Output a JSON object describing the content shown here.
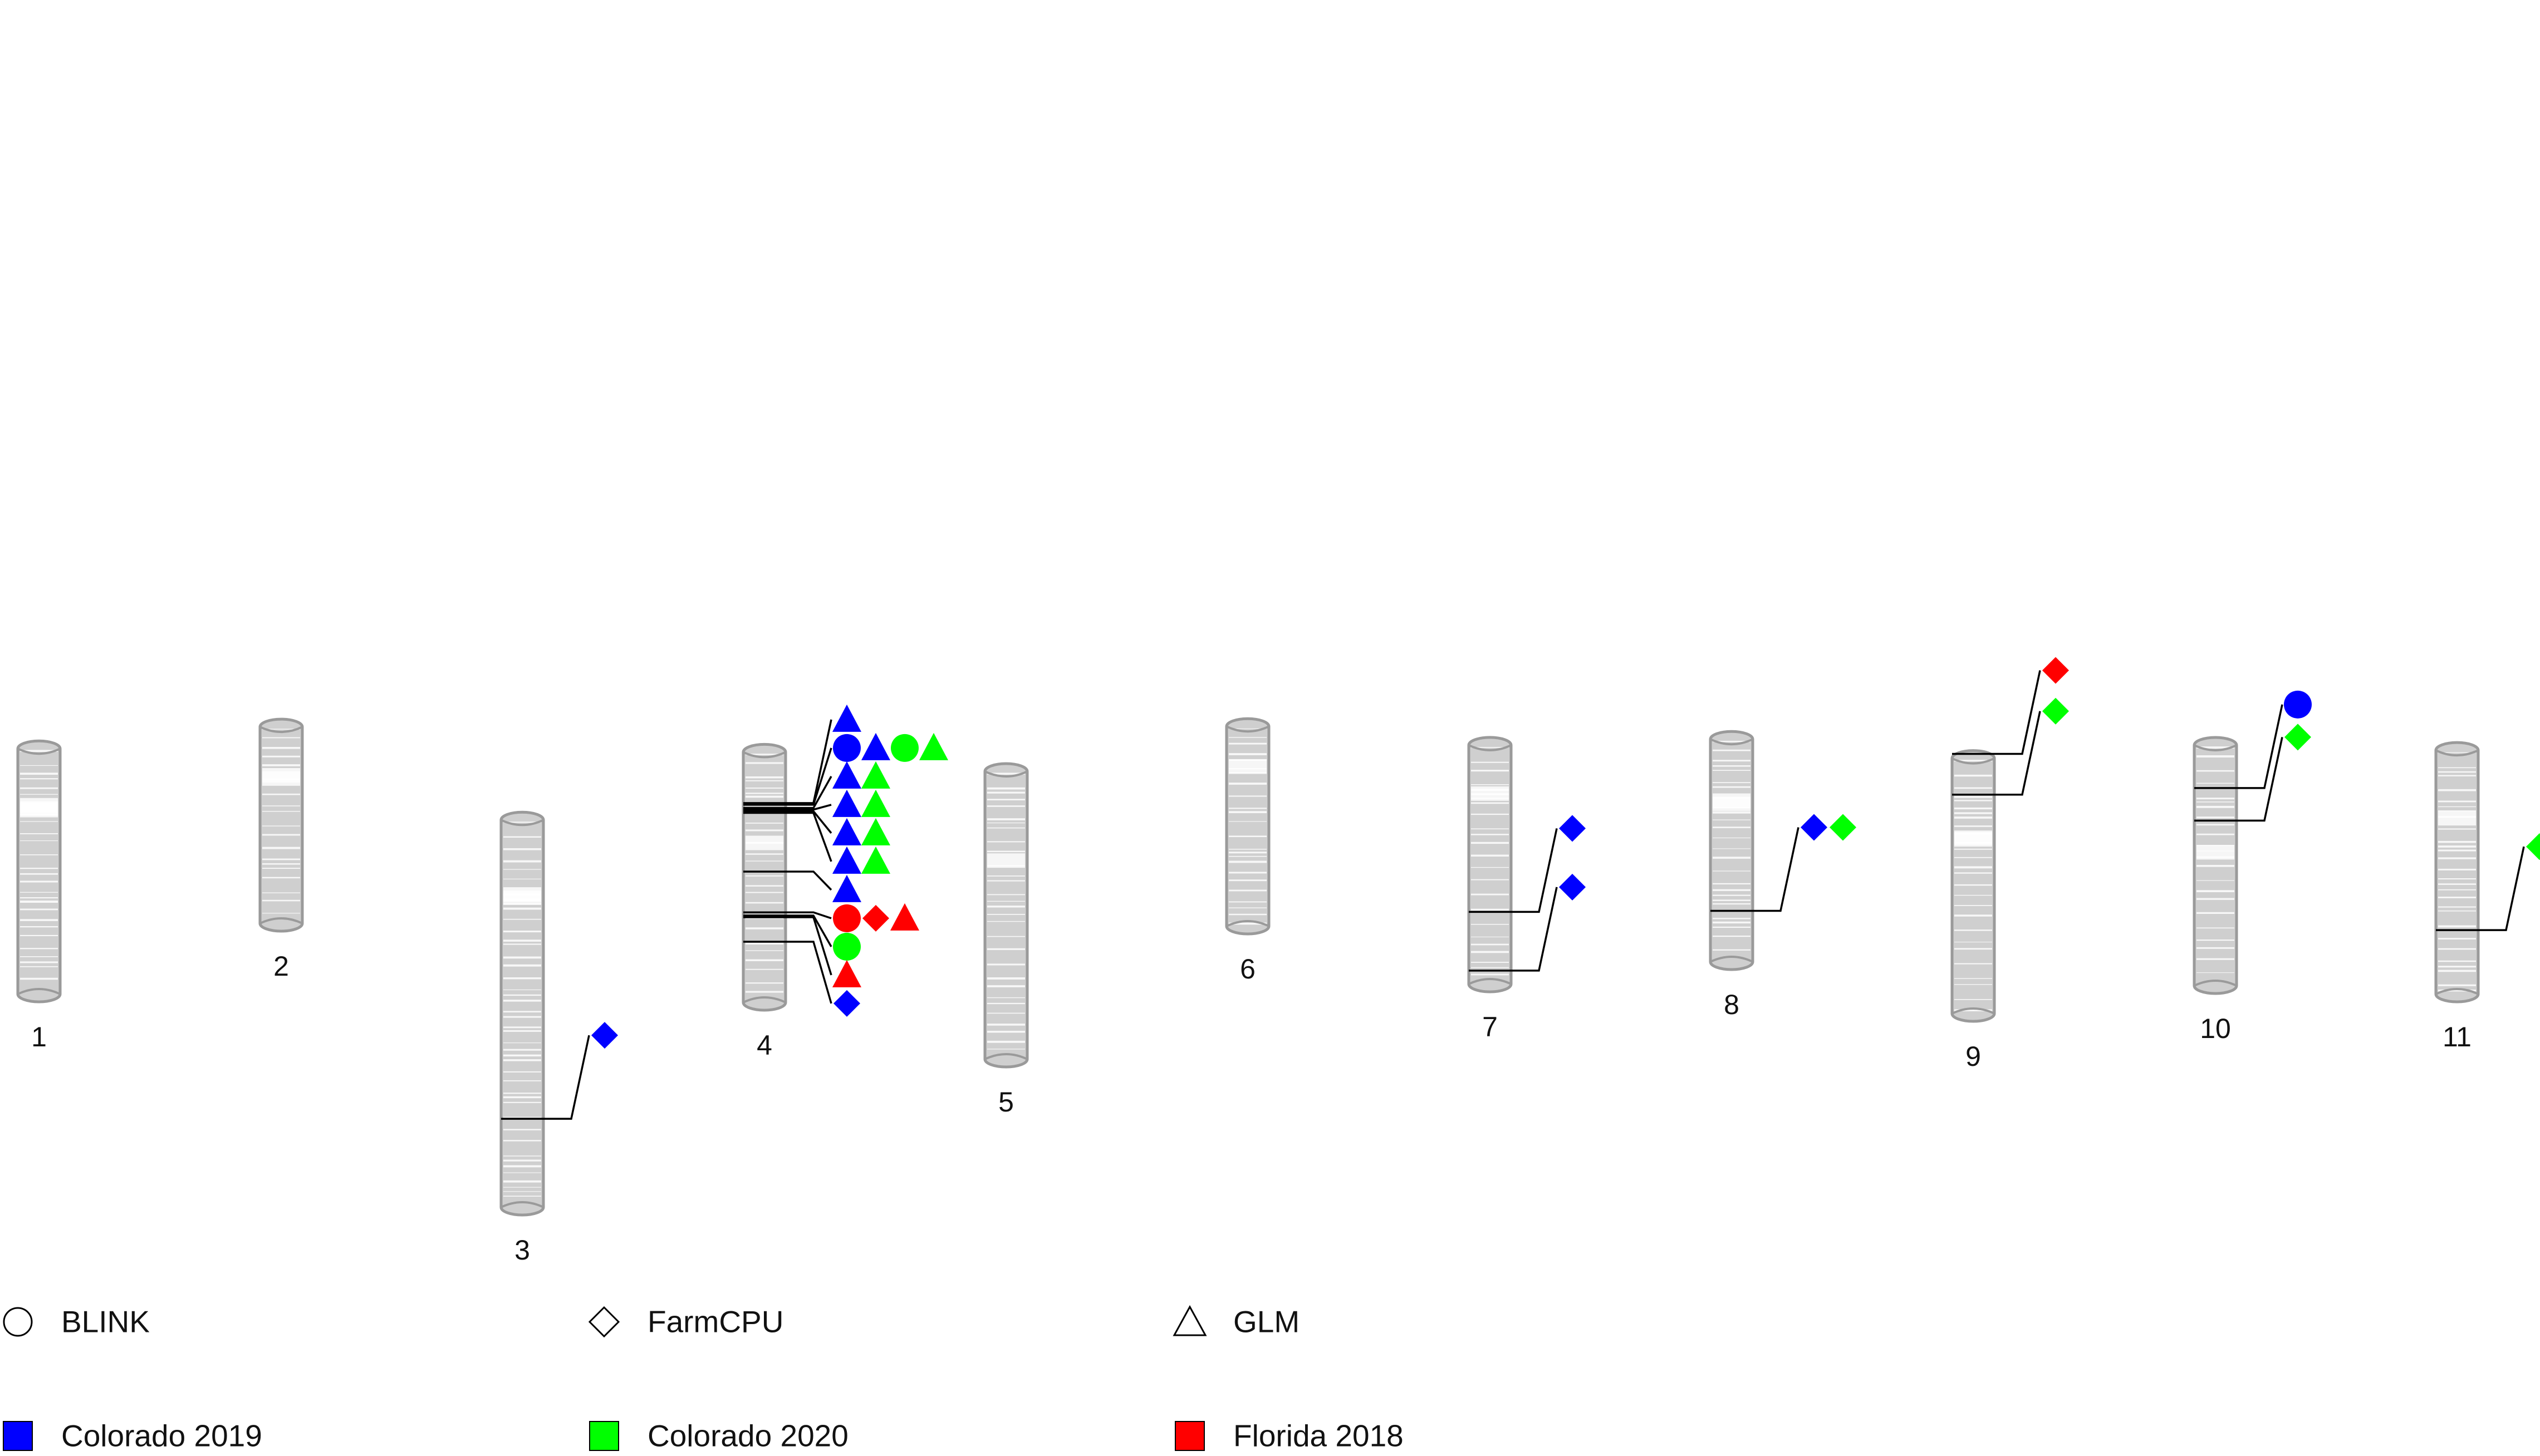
{
  "diagram": {
    "chromosomes": [
      {
        "id": "chr1",
        "label": "1",
        "length": 1.6,
        "window_gaps": [
          0.35,
          0.37,
          0.38
        ]
      },
      {
        "id": "chr2",
        "label": "2",
        "length": 1.3,
        "window_gaps": [
          0.3,
          0.32
        ]
      },
      {
        "id": "chr3",
        "label": "3",
        "length": 2.47,
        "window_gaps": [
          0.46,
          0.48
        ]
      },
      {
        "id": "chr4",
        "label": "4",
        "length": 1.63,
        "window_gaps": [
          0.56
        ]
      },
      {
        "id": "chr5",
        "label": "5",
        "length": 1.86,
        "window_gaps": [
          0.55
        ]
      },
      {
        "id": "chr6",
        "label": "6",
        "length": 1.32,
        "window_gaps": [
          0.25
        ]
      },
      {
        "id": "chr7",
        "label": "7",
        "length": 1.56,
        "window_gaps": [
          0.3
        ]
      },
      {
        "id": "chr8",
        "label": "8",
        "length": 1.46,
        "window_gaps": [
          0.38,
          0.4
        ]
      },
      {
        "id": "chr9",
        "label": "9",
        "length": 1.66,
        "window_gaps": [
          0.49,
          0.5
        ]
      },
      {
        "id": "chr10",
        "label": "10",
        "length": 1.57,
        "window_gaps": [
          0.66
        ]
      },
      {
        "id": "chr11",
        "label": "11",
        "length": 1.59,
        "window_gaps": [
          0.42
        ]
      }
    ],
    "qtls": [
      {
        "chr": "chr3",
        "pos": 1.88,
        "markers": [
          {
            "method": "FarmCPU",
            "env": "Colorado 2019"
          }
        ]
      },
      {
        "chr": "chr4",
        "pos": 0.36,
        "markers": [
          {
            "method": "GLM",
            "env": "Colorado 2019"
          }
        ]
      },
      {
        "chr": "chr4",
        "pos": 0.37,
        "markers": [
          {
            "method": "BLINK",
            "env": "Colorado 2019"
          },
          {
            "method": "GLM",
            "env": "Colorado 2019"
          },
          {
            "method": "BLINK",
            "env": "Colorado 2020"
          },
          {
            "method": "GLM",
            "env": "Colorado 2020"
          }
        ]
      },
      {
        "chr": "chr4",
        "pos": 0.39,
        "markers": [
          {
            "method": "GLM",
            "env": "Colorado 2019"
          },
          {
            "method": "GLM",
            "env": "Colorado 2020"
          }
        ]
      },
      {
        "chr": "chr4",
        "pos": 0.4,
        "markers": [
          {
            "method": "GLM",
            "env": "Colorado 2019"
          },
          {
            "method": "GLM",
            "env": "Colorado 2020"
          }
        ]
      },
      {
        "chr": "chr4",
        "pos": 0.41,
        "markers": [
          {
            "method": "GLM",
            "env": "Colorado 2019"
          },
          {
            "method": "GLM",
            "env": "Colorado 2020"
          }
        ]
      },
      {
        "chr": "chr4",
        "pos": 0.42,
        "markers": [
          {
            "method": "GLM",
            "env": "Colorado 2019"
          },
          {
            "method": "GLM",
            "env": "Colorado 2020"
          }
        ]
      },
      {
        "chr": "chr4",
        "pos": 0.78,
        "markers": [
          {
            "method": "GLM",
            "env": "Colorado 2019"
          }
        ]
      },
      {
        "chr": "chr4",
        "pos": 1.03,
        "markers": [
          {
            "method": "BLINK",
            "env": "Florida 2018"
          },
          {
            "method": "FarmCPU",
            "env": "Florida 2018"
          },
          {
            "method": "GLM",
            "env": "Florida 2018"
          }
        ]
      },
      {
        "chr": "chr4",
        "pos": 1.05,
        "markers": [
          {
            "method": "BLINK",
            "env": "Colorado 2020"
          }
        ]
      },
      {
        "chr": "chr4",
        "pos": 1.06,
        "markers": [
          {
            "method": "GLM",
            "env": "Florida 2018"
          }
        ]
      },
      {
        "chr": "chr4",
        "pos": 1.21,
        "markers": [
          {
            "method": "FarmCPU",
            "env": "Colorado 2019"
          }
        ]
      },
      {
        "chr": "chr7",
        "pos": 1.07,
        "markers": [
          {
            "method": "FarmCPU",
            "env": "Colorado 2019"
          }
        ]
      },
      {
        "chr": "chr7",
        "pos": 1.43,
        "markers": [
          {
            "method": "FarmCPU",
            "env": "Colorado 2019"
          }
        ]
      },
      {
        "chr": "chr8",
        "pos": 1.1,
        "markers": [
          {
            "method": "FarmCPU",
            "env": "Colorado 2019"
          },
          {
            "method": "FarmCPU",
            "env": "Colorado 2020"
          }
        ]
      },
      {
        "chr": "chr9",
        "pos": 0.02,
        "markers": [
          {
            "method": "FarmCPU",
            "env": "Florida 2018"
          }
        ]
      },
      {
        "chr": "chr9",
        "pos": 0.27,
        "markers": [
          {
            "method": "FarmCPU",
            "env": "Colorado 2020"
          }
        ]
      },
      {
        "chr": "chr10",
        "pos": 0.31,
        "markers": [
          {
            "method": "BLINK",
            "env": "Colorado 2019"
          }
        ]
      },
      {
        "chr": "chr10",
        "pos": 0.51,
        "markers": [
          {
            "method": "FarmCPU",
            "env": "Colorado 2020"
          }
        ]
      },
      {
        "chr": "chr11",
        "pos": 1.15,
        "markers": [
          {
            "method": "FarmCPU",
            "env": "Colorado 2020"
          }
        ]
      }
    ]
  },
  "legend": {
    "methods": [
      {
        "label": "BLINK",
        "shape": "circle-icon"
      },
      {
        "label": "FarmCPU",
        "shape": "diamond-icon"
      },
      {
        "label": "GLM",
        "shape": "triangle-icon"
      }
    ],
    "environments": [
      {
        "label": "Colorado 2019",
        "color": "#0000ff"
      },
      {
        "label": "Colorado 2020",
        "color": "#00ff00"
      },
      {
        "label": "Florida 2018",
        "color": "#ff0000"
      }
    ]
  },
  "colors": {
    "chromosome_fill": "#cfcfcf",
    "chromosome_stroke": "#9a9a9a",
    "line": "#000000"
  }
}
